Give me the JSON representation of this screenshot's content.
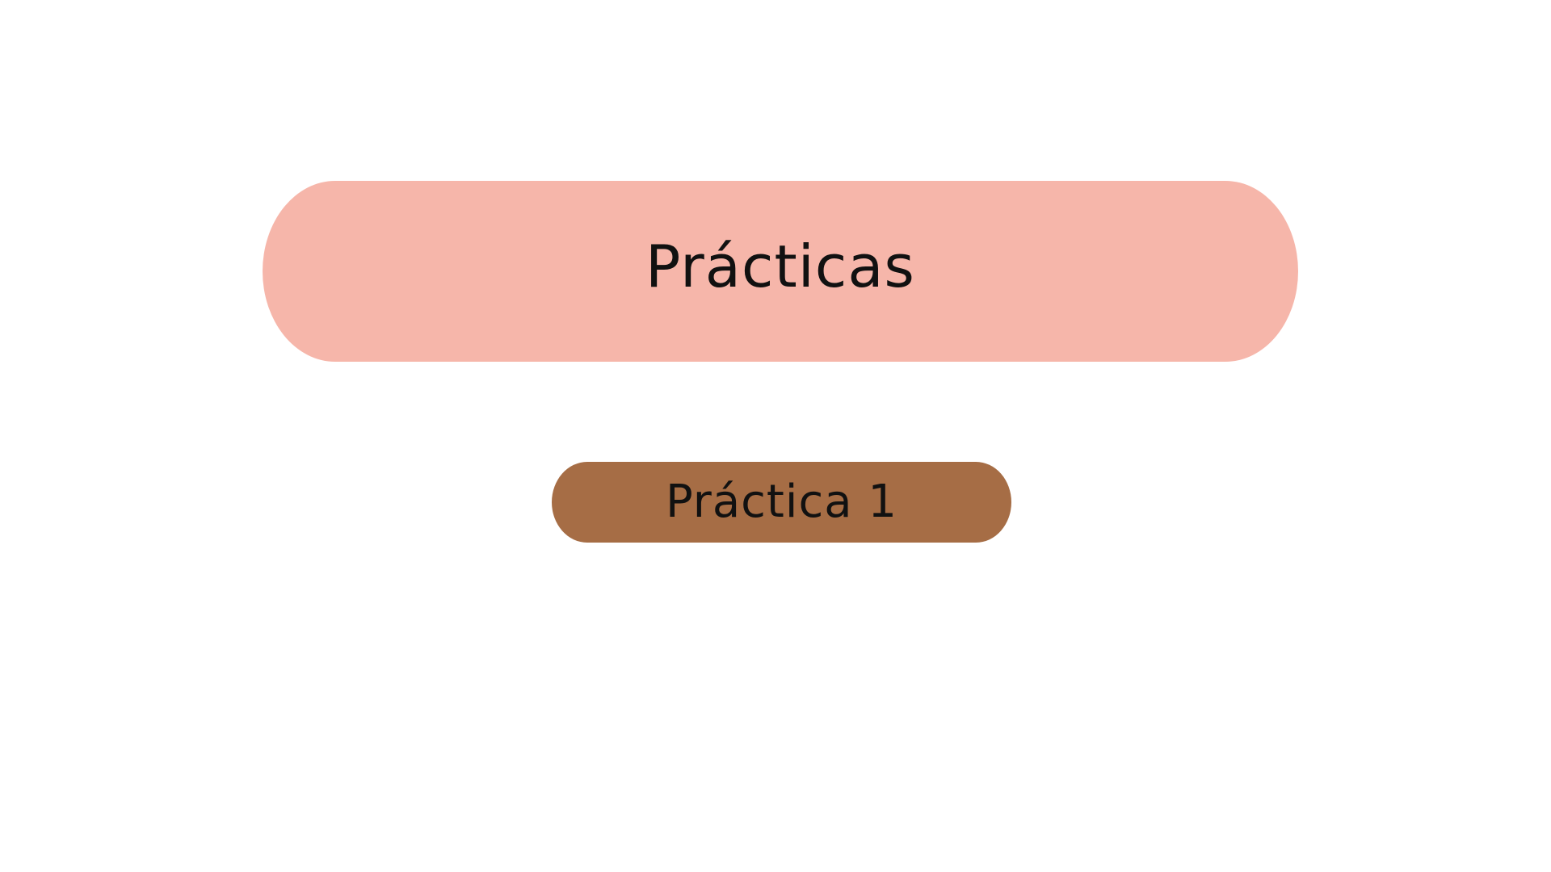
{
  "slide": {
    "title": "Prácticas",
    "title_color": "#f6b6aa",
    "buttons": [
      {
        "label": "Práctica 1",
        "color": "#a66d45"
      }
    ]
  }
}
